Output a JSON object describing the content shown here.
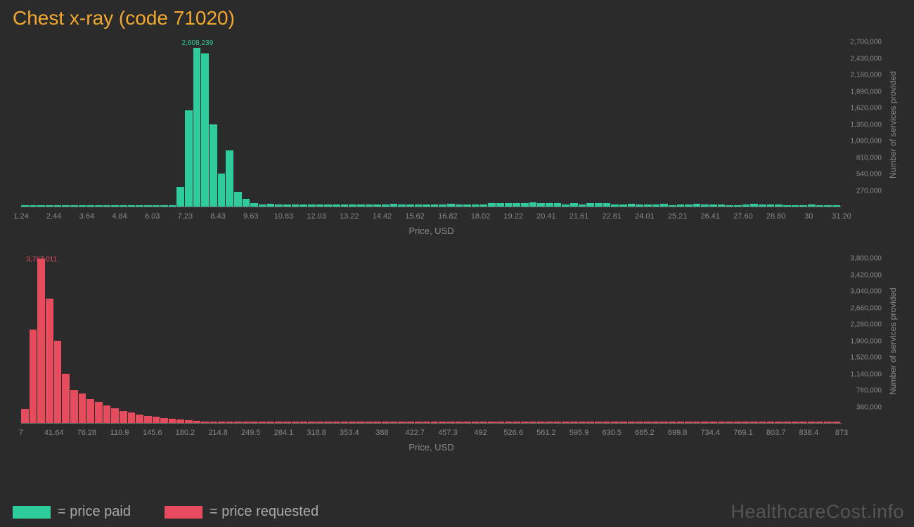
{
  "title": "Chest x-ray (code 71020)",
  "watermark": "HealthcareCost.info",
  "legend": {
    "paid": {
      "label": "= price paid",
      "color": "#2ecc9a"
    },
    "requested": {
      "label": "= price requested",
      "color": "#e74c5e"
    }
  },
  "axis_labels": {
    "x": "Price, USD",
    "y": "Number of services provided"
  },
  "chart_paid": {
    "bar_color": "#2ecc9a",
    "peak_value": "2,608,239",
    "peak_color": "#2ecc9a",
    "y_max": 2700000,
    "y_ticks": [
      "270,000",
      "540,000",
      "810,000",
      "1,080,000",
      "1,350,000",
      "1,620,000",
      "1,890,000",
      "2,160,000",
      "2,430,000",
      "2,700,000"
    ],
    "x_ticks": [
      "1.24",
      "2.44",
      "3.64",
      "4.84",
      "6.03",
      "7.23",
      "8.43",
      "9.63",
      "10.83",
      "12.03",
      "13.22",
      "14.42",
      "15.62",
      "16.82",
      "18.02",
      "19.22",
      "20.41",
      "21.61",
      "22.81",
      "24.01",
      "25.21",
      "26.41",
      "27.60",
      "28.80",
      "30",
      "31.20"
    ],
    "values": [
      15000,
      8000,
      12000,
      15000,
      10000,
      12000,
      15000,
      12000,
      15000,
      10000,
      8000,
      12000,
      15000,
      12000,
      10000,
      15000,
      12000,
      10000,
      8000,
      320000,
      1580000,
      2608239,
      2520000,
      1350000,
      540000,
      920000,
      240000,
      130000,
      60000,
      40000,
      50000,
      35000,
      40000,
      35000,
      38000,
      30000,
      40000,
      35000,
      38000,
      30000,
      40000,
      35000,
      38000,
      30000,
      40000,
      42000,
      40000,
      30000,
      38000,
      35000,
      30000,
      40000,
      42000,
      38000,
      35000,
      30000,
      40000,
      58000,
      62000,
      58000,
      62000,
      60000,
      65000,
      60000,
      62000,
      60000,
      40000,
      58000,
      38000,
      60000,
      58000,
      62000,
      40000,
      35000,
      42000,
      40000,
      38000,
      35000,
      42000,
      20000,
      38000,
      35000,
      42000,
      40000,
      38000,
      35000,
      20000,
      20000,
      38000,
      42000,
      40000,
      38000,
      35000,
      18000,
      15000,
      18000,
      30000,
      15000,
      18000,
      15000
    ]
  },
  "chart_requested": {
    "bar_color": "#e74c5e",
    "peak_value": "3,797,011",
    "peak_color": "#e74c5e",
    "y_max": 3800000,
    "y_ticks": [
      "380,000",
      "760,000",
      "1,140,000",
      "1,520,000",
      "1,900,000",
      "2,280,000",
      "2,660,000",
      "3,040,000",
      "3,420,000",
      "3,800,000"
    ],
    "x_ticks": [
      "7",
      "41.64",
      "76.28",
      "110.9",
      "145.6",
      "180.2",
      "214.8",
      "249.5",
      "284.1",
      "318.8",
      "353.4",
      "388",
      "422.7",
      "457.3",
      "492",
      "526.6",
      "561.2",
      "595.9",
      "630.5",
      "665.2",
      "699.8",
      "734.4",
      "769.1",
      "803.7",
      "838.4",
      "873"
    ],
    "values": [
      320000,
      2160000,
      3797011,
      2880000,
      1900000,
      1140000,
      760000,
      680000,
      560000,
      480000,
      400000,
      340000,
      280000,
      240000,
      200000,
      170000,
      140000,
      120000,
      95000,
      80000,
      60000,
      45000,
      30000,
      28000,
      18000,
      16000,
      12000,
      10000,
      8000,
      8000,
      6000,
      6000,
      5000,
      5000,
      4000,
      4000,
      4000,
      4000,
      3000,
      3000,
      3000,
      3000,
      3000,
      3000,
      3000,
      3000,
      3000,
      3000,
      3000,
      3000,
      3000,
      3000,
      3000,
      3000,
      3000,
      3000,
      3000,
      3000,
      3000,
      3000,
      3000,
      3000,
      3000,
      3000,
      3000,
      3000,
      3000,
      3000,
      3000,
      3000,
      3000,
      3000,
      3000,
      3000,
      3000,
      3000,
      3000,
      3000,
      3000,
      3000,
      3000,
      3000,
      3000,
      3000,
      3000,
      3000,
      3000,
      3000,
      3000,
      3000,
      3000,
      3000,
      3000,
      3000,
      3000,
      3000,
      3000,
      3000,
      3000,
      3000
    ]
  }
}
